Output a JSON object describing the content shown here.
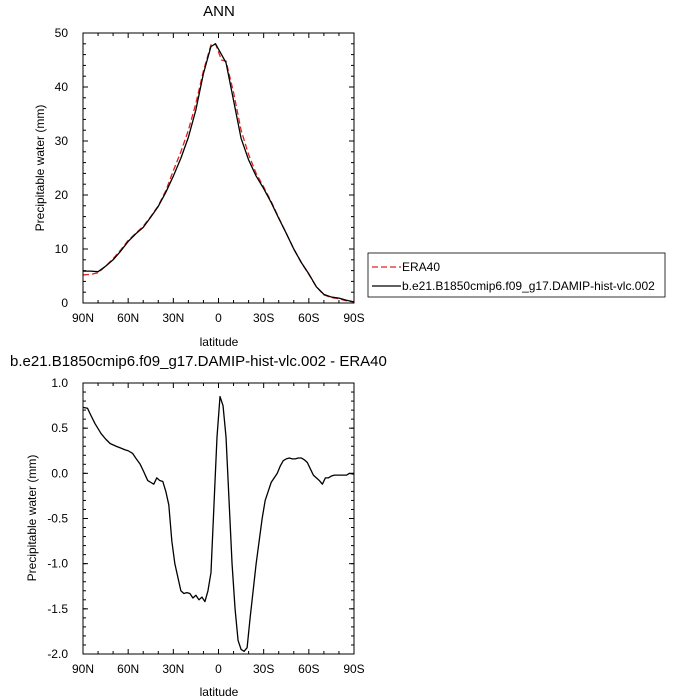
{
  "chart_data": [
    {
      "type": "line",
      "title": "ANN",
      "xlabel": "latitude",
      "ylabel": "Precipitable water (mm)",
      "xlim": [
        90,
        -90
      ],
      "ylim": [
        0,
        50
      ],
      "xticks": [
        90,
        60,
        30,
        0,
        -30,
        -60,
        -90
      ],
      "xtick_labels": [
        "90N",
        "60N",
        "30N",
        "0",
        "30S",
        "60S",
        "90S"
      ],
      "yticks": [
        0,
        10,
        20,
        30,
        40,
        50
      ],
      "ytick_labels": [
        "0",
        "10",
        "20",
        "30",
        "40",
        "50"
      ],
      "legend_position": "right",
      "series": [
        {
          "name": "ERA40",
          "color": "#e02020",
          "dash": "dashed",
          "x": [
            90,
            85,
            80,
            75,
            70,
            65,
            60,
            55,
            50,
            45,
            40,
            35,
            30,
            25,
            20,
            15,
            10,
            5,
            2,
            0,
            -2,
            -5,
            -10,
            -15,
            -20,
            -25,
            -30,
            -35,
            -40,
            -45,
            -50,
            -55,
            -60,
            -65,
            -70,
            -75,
            -80,
            -85,
            -90
          ],
          "values": [
            5.2,
            5.3,
            5.6,
            6.8,
            8.2,
            9.8,
            11.6,
            12.9,
            14.2,
            16.0,
            18.0,
            20.8,
            24.5,
            28.0,
            32.0,
            37.0,
            43.0,
            47.8,
            48.0,
            46.5,
            45.0,
            44.8,
            39.0,
            32.0,
            27.5,
            24.0,
            21.5,
            18.8,
            15.8,
            12.9,
            10.0,
            7.5,
            5.3,
            3.0,
            1.5,
            1.0,
            0.8,
            0.4,
            0.2
          ]
        },
        {
          "name": "b.e21.B1850cmip6.f09_g17.DAMIP-hist-vlc.002",
          "color": "#000000",
          "dash": "solid",
          "x": [
            90,
            85,
            80,
            75,
            70,
            65,
            60,
            55,
            50,
            45,
            40,
            35,
            30,
            25,
            20,
            15,
            10,
            5,
            2,
            0,
            -2,
            -5,
            -10,
            -15,
            -20,
            -25,
            -30,
            -35,
            -40,
            -45,
            -50,
            -55,
            -60,
            -65,
            -70,
            -75,
            -80,
            -85,
            -90
          ],
          "values": [
            5.9,
            5.9,
            5.8,
            6.8,
            8.0,
            9.6,
            11.4,
            12.8,
            14.0,
            15.9,
            17.9,
            20.5,
            23.5,
            26.8,
            30.7,
            35.8,
            42.5,
            47.5,
            48.0,
            47.0,
            46.0,
            44.5,
            37.5,
            30.5,
            26.5,
            23.5,
            21.2,
            18.6,
            15.7,
            12.9,
            10.0,
            7.5,
            5.4,
            3.0,
            1.6,
            1.1,
            0.9,
            0.5,
            0.2
          ]
        }
      ]
    },
    {
      "type": "line",
      "title": "b.e21.B1850cmip6.f09_g17.DAMIP-hist-vlc.002 - ERA40",
      "xlabel": "latitude",
      "ylabel": "Precipitable water (mm)",
      "xlim": [
        90,
        -90
      ],
      "ylim": [
        -2.0,
        1.0
      ],
      "xticks": [
        90,
        60,
        30,
        0,
        -30,
        -60,
        -90
      ],
      "xtick_labels": [
        "90N",
        "60N",
        "30N",
        "0",
        "30S",
        "60S",
        "90S"
      ],
      "yticks": [
        1.0,
        0.5,
        0.0,
        -0.5,
        -1.0,
        -1.5,
        -2.0
      ],
      "ytick_labels": [
        "1.0",
        "0.5",
        "0.0",
        "-0.5",
        "-1.0",
        "-1.5",
        "-2.0"
      ],
      "series": [
        {
          "color": "#000000",
          "dash": "solid",
          "x": [
            90,
            87,
            85,
            82,
            78,
            75,
            72,
            68,
            65,
            62,
            60,
            57,
            55,
            52,
            50,
            47,
            45,
            43,
            41,
            39,
            37,
            35,
            33,
            31,
            29,
            27,
            25,
            23,
            21,
            19,
            17,
            15,
            13,
            11,
            9,
            7,
            5,
            3,
            1,
            -1,
            -3,
            -5,
            -7,
            -9,
            -11,
            -13,
            -15,
            -17,
            -19,
            -21,
            -23,
            -25,
            -27,
            -29,
            -31,
            -33,
            -35,
            -37,
            -39,
            -41,
            -43,
            -45,
            -47,
            -49,
            -51,
            -53,
            -55,
            -57,
            -59,
            -61,
            -63,
            -65,
            -67,
            -69,
            -71,
            -73,
            -75,
            -77,
            -79,
            -81,
            -83,
            -85,
            -87,
            -90
          ],
          "values": [
            0.73,
            0.72,
            0.65,
            0.55,
            0.44,
            0.38,
            0.33,
            0.3,
            0.28,
            0.26,
            0.25,
            0.22,
            0.17,
            0.1,
            0.03,
            -0.08,
            -0.1,
            -0.12,
            -0.05,
            -0.08,
            -0.09,
            -0.2,
            -0.35,
            -0.75,
            -1.0,
            -1.15,
            -1.3,
            -1.33,
            -1.32,
            -1.33,
            -1.38,
            -1.35,
            -1.4,
            -1.37,
            -1.42,
            -1.3,
            -1.1,
            -0.35,
            0.4,
            0.85,
            0.75,
            0.4,
            -0.3,
            -1.0,
            -1.5,
            -1.85,
            -1.95,
            -1.97,
            -1.93,
            -1.6,
            -1.3,
            -1.0,
            -0.75,
            -0.5,
            -0.3,
            -0.2,
            -0.1,
            -0.05,
            0.0,
            0.08,
            0.14,
            0.16,
            0.17,
            0.16,
            0.16,
            0.17,
            0.17,
            0.15,
            0.12,
            0.05,
            -0.02,
            -0.05,
            -0.08,
            -0.12,
            -0.05,
            -0.05,
            -0.03,
            -0.02,
            -0.02,
            -0.02,
            -0.02,
            -0.02,
            0.0,
            -0.01
          ]
        }
      ]
    }
  ]
}
